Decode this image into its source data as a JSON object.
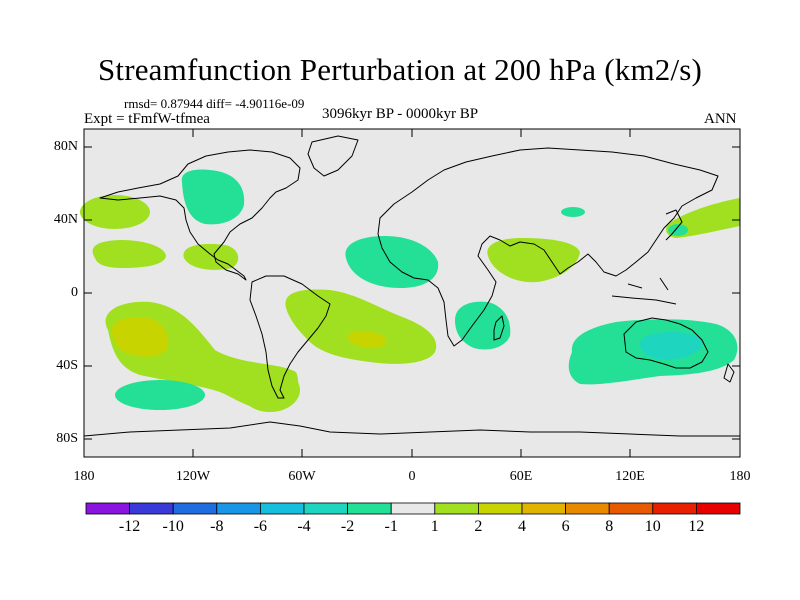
{
  "title": "Streamfunction Perturbation at 200 hPa (km2/s)",
  "stats": "rmsd= 0.87944 diff= -4.90116e-09",
  "experiment": "Expt = tFmfW-tfmea",
  "time_range": "3096kyr BP - 0000kyr BP",
  "season": "ANN",
  "lat_labels": [
    "80N",
    "40N",
    "0",
    "40S",
    "80S"
  ],
  "lon_labels": [
    "180",
    "120W",
    "60W",
    "0",
    "60E",
    "120E",
    "180"
  ],
  "colorbar": {
    "labels": [
      "-12",
      "-10",
      "-8",
      "-6",
      "-4",
      "-2",
      "-1",
      "1",
      "2",
      "4",
      "6",
      "8",
      "10",
      "12"
    ],
    "colors": [
      "#8a14e0",
      "#3a3ad8",
      "#1e6ee0",
      "#1a96e8",
      "#18bede",
      "#1ed6c0",
      "#24e096",
      "#e8e8e8",
      "#a0e020",
      "#c8d400",
      "#e0b400",
      "#e88a00",
      "#e85a00",
      "#e82000",
      "#e80000"
    ]
  },
  "regions": [
    {
      "name": "northeast-pacific-positive",
      "level": "1"
    },
    {
      "name": "north-america-negative",
      "level": "-1"
    },
    {
      "name": "mexico-positive",
      "level": "1"
    },
    {
      "name": "tropical-east-pacific-positive",
      "level": "1"
    },
    {
      "name": "tropical-north-atlantic-negative",
      "level": "-1"
    },
    {
      "name": "south-pacific-positive",
      "level": "2"
    },
    {
      "name": "south-pacific-core",
      "level": "4"
    },
    {
      "name": "south-pacific-negative",
      "level": "-1"
    },
    {
      "name": "south-atlantic-positive",
      "level": "1"
    },
    {
      "name": "south-atlantic-core",
      "level": "2"
    },
    {
      "name": "patagonia-positive",
      "level": "1"
    },
    {
      "name": "arabian-sea-positive",
      "level": "1"
    },
    {
      "name": "madagascar-negative",
      "level": "-1"
    },
    {
      "name": "australia-negative",
      "level": "-1"
    },
    {
      "name": "australia-core",
      "level": "-2"
    },
    {
      "name": "northwest-pacific-positive",
      "level": "1"
    },
    {
      "name": "northwest-pacific-negative",
      "level": "-1"
    },
    {
      "name": "central-asia-negative",
      "level": "-1"
    }
  ]
}
